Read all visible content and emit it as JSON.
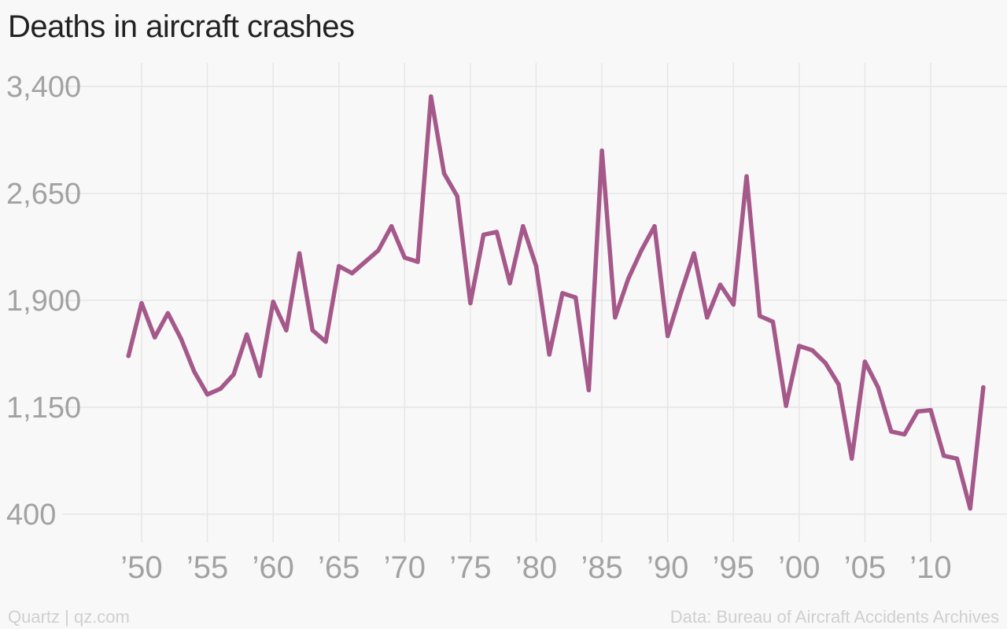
{
  "title": "Deaths in aircraft crashes",
  "credit": "Quartz | qz.com",
  "source": "Data: Bureau of Aircraft Accidents Archives",
  "colors": {
    "line": "#a5598a",
    "grid": "#e6e6e6",
    "tick_text": "#a2a2a2",
    "background": "#f8f8f8"
  },
  "chart_data": {
    "type": "line",
    "title": "Deaths in aircraft crashes",
    "xlabel": "",
    "ylabel": "",
    "ylim": [
      400,
      3400
    ],
    "xlim": [
      1948,
      2013
    ],
    "yticks": [
      400,
      1150,
      1900,
      2650,
      3400
    ],
    "ytick_labels": [
      "400",
      "1,150",
      "1,900",
      "2,650",
      "3,400"
    ],
    "xticks": [
      1950,
      1955,
      1960,
      1965,
      1970,
      1975,
      1980,
      1985,
      1990,
      1995,
      2000,
      2005,
      2010
    ],
    "xtick_labels": [
      "’50",
      "’55",
      "’60",
      "’65",
      "’70",
      "’75",
      "’80",
      "’85",
      "’90",
      "’95",
      "’00",
      "’05",
      "’10"
    ],
    "grid": true,
    "series": [
      {
        "x": [
          1949,
          1950,
          1951,
          1952,
          1953,
          1954,
          1955,
          1956,
          1957,
          1958,
          1959,
          1960,
          1961,
          1962,
          1963,
          1964,
          1965,
          1966,
          1967,
          1968,
          1969,
          1970,
          1971,
          1972,
          1973,
          1974,
          1975,
          1976,
          1977,
          1978,
          1979,
          1980,
          1981,
          1982,
          1983,
          1984,
          1985,
          1986,
          1987,
          1988,
          1989,
          1990,
          1991,
          1992,
          1993,
          1994,
          1995,
          1996,
          1997,
          1998,
          1999,
          2000,
          2001,
          2002,
          2003,
          2004,
          2005,
          2006,
          2007,
          2008,
          2009,
          2010,
          2011,
          2012,
          2013,
          2014
        ],
        "values": [
          1510,
          1880,
          1640,
          1810,
          1630,
          1400,
          1240,
          1280,
          1380,
          1660,
          1370,
          1890,
          1690,
          2230,
          1690,
          1610,
          2140,
          2090,
          2170,
          2250,
          2420,
          2200,
          2170,
          3330,
          2790,
          2630,
          1880,
          2360,
          2380,
          2020,
          2420,
          2140,
          1520,
          1950,
          1920,
          1270,
          2950,
          1780,
          2050,
          2250,
          2420,
          1650,
          1950,
          2230,
          1780,
          2010,
          1870,
          2770,
          1790,
          1750,
          1160,
          1580,
          1550,
          1460,
          1310,
          790,
          1470,
          1290,
          980,
          960,
          1120,
          1130,
          810,
          790,
          440,
          1290
        ]
      }
    ]
  }
}
